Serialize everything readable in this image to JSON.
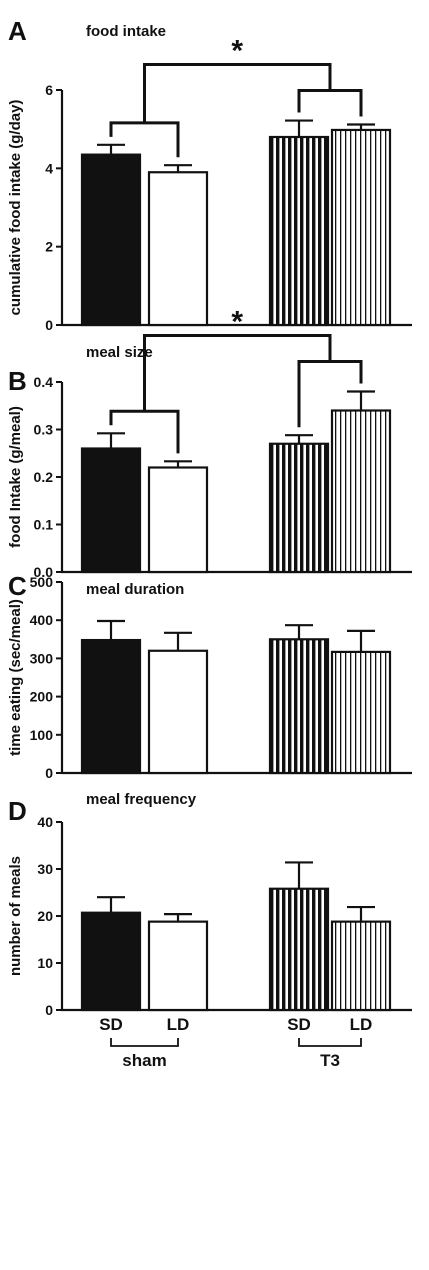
{
  "colors": {
    "ink": "#111111",
    "background": "#ffffff"
  },
  "fills": [
    "solid",
    "open",
    "vertical-hatch-bold",
    "vertical-hatch-fine"
  ],
  "x_labels": [
    "SD",
    "LD",
    "SD",
    "LD"
  ],
  "groups": [
    {
      "label": "sham",
      "bars": [
        0,
        1
      ]
    },
    {
      "label": "T3",
      "bars": [
        2,
        3
      ]
    }
  ],
  "chart_data": [
    {
      "type": "bar",
      "letter": "A",
      "title": "food intake",
      "ylabel": "cumulative food intake (g/day)",
      "ylim": [
        0,
        6
      ],
      "yticks": [
        "0",
        "2",
        "4",
        "6"
      ],
      "categories": [
        "SD",
        "LD",
        "SD",
        "LD"
      ],
      "values": [
        4.35,
        3.9,
        4.8,
        4.98
      ],
      "errors": [
        0.25,
        0.18,
        0.42,
        0.14
      ],
      "significance": {
        "label": "*"
      }
    },
    {
      "type": "bar",
      "letter": "B",
      "title": "meal size",
      "ylabel": "food Intake (g/meal)",
      "ylim": [
        0,
        0.4
      ],
      "yticks": [
        "0.0",
        "0.1",
        "0.2",
        "0.3",
        "0.4"
      ],
      "categories": [
        "SD",
        "LD",
        "SD",
        "LD"
      ],
      "values": [
        0.26,
        0.22,
        0.27,
        0.34
      ],
      "errors": [
        0.032,
        0.013,
        0.018,
        0.04
      ],
      "significance": {
        "label": "*"
      }
    },
    {
      "type": "bar",
      "letter": "C",
      "title": "meal duration",
      "ylabel": "time eating (sec/meal)",
      "ylim": [
        0,
        500
      ],
      "yticks": [
        "0",
        "100",
        "200",
        "300",
        "400",
        "500"
      ],
      "categories": [
        "SD",
        "LD",
        "SD",
        "LD"
      ],
      "values": [
        348,
        320,
        350,
        317
      ],
      "errors": [
        50,
        47,
        37,
        55
      ],
      "significance": null
    },
    {
      "type": "bar",
      "letter": "D",
      "title": "meal frequency",
      "ylabel": "number of meals",
      "ylim": [
        0,
        40
      ],
      "yticks": [
        "0",
        "10",
        "20",
        "30",
        "40"
      ],
      "categories": [
        "SD",
        "LD",
        "SD",
        "LD"
      ],
      "values": [
        20.7,
        18.8,
        25.8,
        18.8
      ],
      "errors": [
        3.3,
        1.6,
        5.6,
        3.1
      ],
      "significance": null
    }
  ]
}
